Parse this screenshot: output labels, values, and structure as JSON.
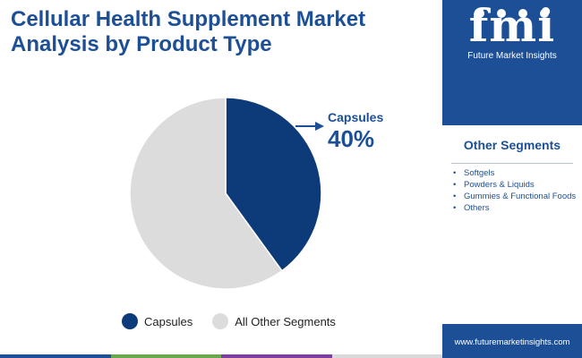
{
  "title": {
    "line1": "Cellular Health Supplement Market",
    "line2": "Analysis by Product Type"
  },
  "brand": {
    "logo_text": "fmi",
    "tagline": "Future Market Insights",
    "url": "www.futuremarketinsights.com"
  },
  "other_segments": {
    "heading": "Other Segments",
    "items": [
      "Softgels",
      "Powders & Liquids",
      "Gummies & Functional Foods",
      "Others"
    ]
  },
  "callout": {
    "label": "Capsules",
    "value": "40%"
  },
  "colors": {
    "primary": "#1c4f96",
    "pie_dark": "#0d3b7a",
    "pie_light": "#dcdcdc",
    "bar": [
      "#1c4f96",
      "#6aa84f",
      "#7b3f9e",
      "#d9d9d9"
    ]
  },
  "chart_data": {
    "type": "pie",
    "title": "",
    "slices": [
      {
        "label": "Capsules",
        "value": 40,
        "color": "#0d3b7a"
      },
      {
        "label": "All Other Segments",
        "value": 60,
        "color": "#dcdcdc"
      }
    ],
    "legend": {
      "placement": "bottom",
      "entries": [
        "Capsules",
        "All Other Segments"
      ]
    }
  }
}
